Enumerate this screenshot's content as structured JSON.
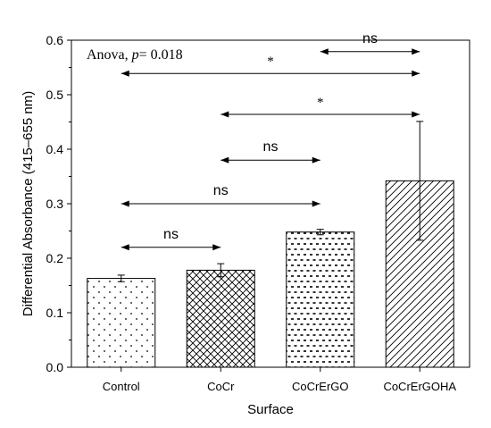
{
  "chart_data": {
    "type": "bar",
    "xlabel": "Surface",
    "ylabel": "Differential Absorbance (415–655 nm)",
    "ylim": [
      0,
      0.6
    ],
    "yticks": [
      "0.0",
      "0.1",
      "0.2",
      "0.3",
      "0.4",
      "0.5",
      "0.6"
    ],
    "categories": [
      "Control",
      "CoCr",
      "CoCrErGO",
      "CoCrErGOHA"
    ],
    "values": [
      0.163,
      0.178,
      0.248,
      0.342
    ],
    "errors": [
      0.006,
      0.012,
      0.005,
      0.109
    ],
    "patterns": [
      "dots",
      "crosshatch",
      "dashes",
      "diagonal"
    ],
    "annotation": {
      "prefix": "Anova, ",
      "italic": "p",
      "suffix": "= 0.018"
    },
    "comparisons": [
      {
        "from": 3,
        "to": 4,
        "y": 0.579,
        "label": "ns"
      },
      {
        "from": 1,
        "to": 4,
        "y": 0.539,
        "label": "*"
      },
      {
        "from": 2,
        "to": 4,
        "y": 0.464,
        "label": "*"
      },
      {
        "from": 2,
        "to": 3,
        "y": 0.38,
        "label": "ns"
      },
      {
        "from": 1,
        "to": 3,
        "y": 0.3,
        "label": "ns"
      },
      {
        "from": 1,
        "to": 2,
        "y": 0.22,
        "label": "ns"
      }
    ],
    "colors": {
      "ink": "#000000",
      "background": "#ffffff"
    }
  }
}
